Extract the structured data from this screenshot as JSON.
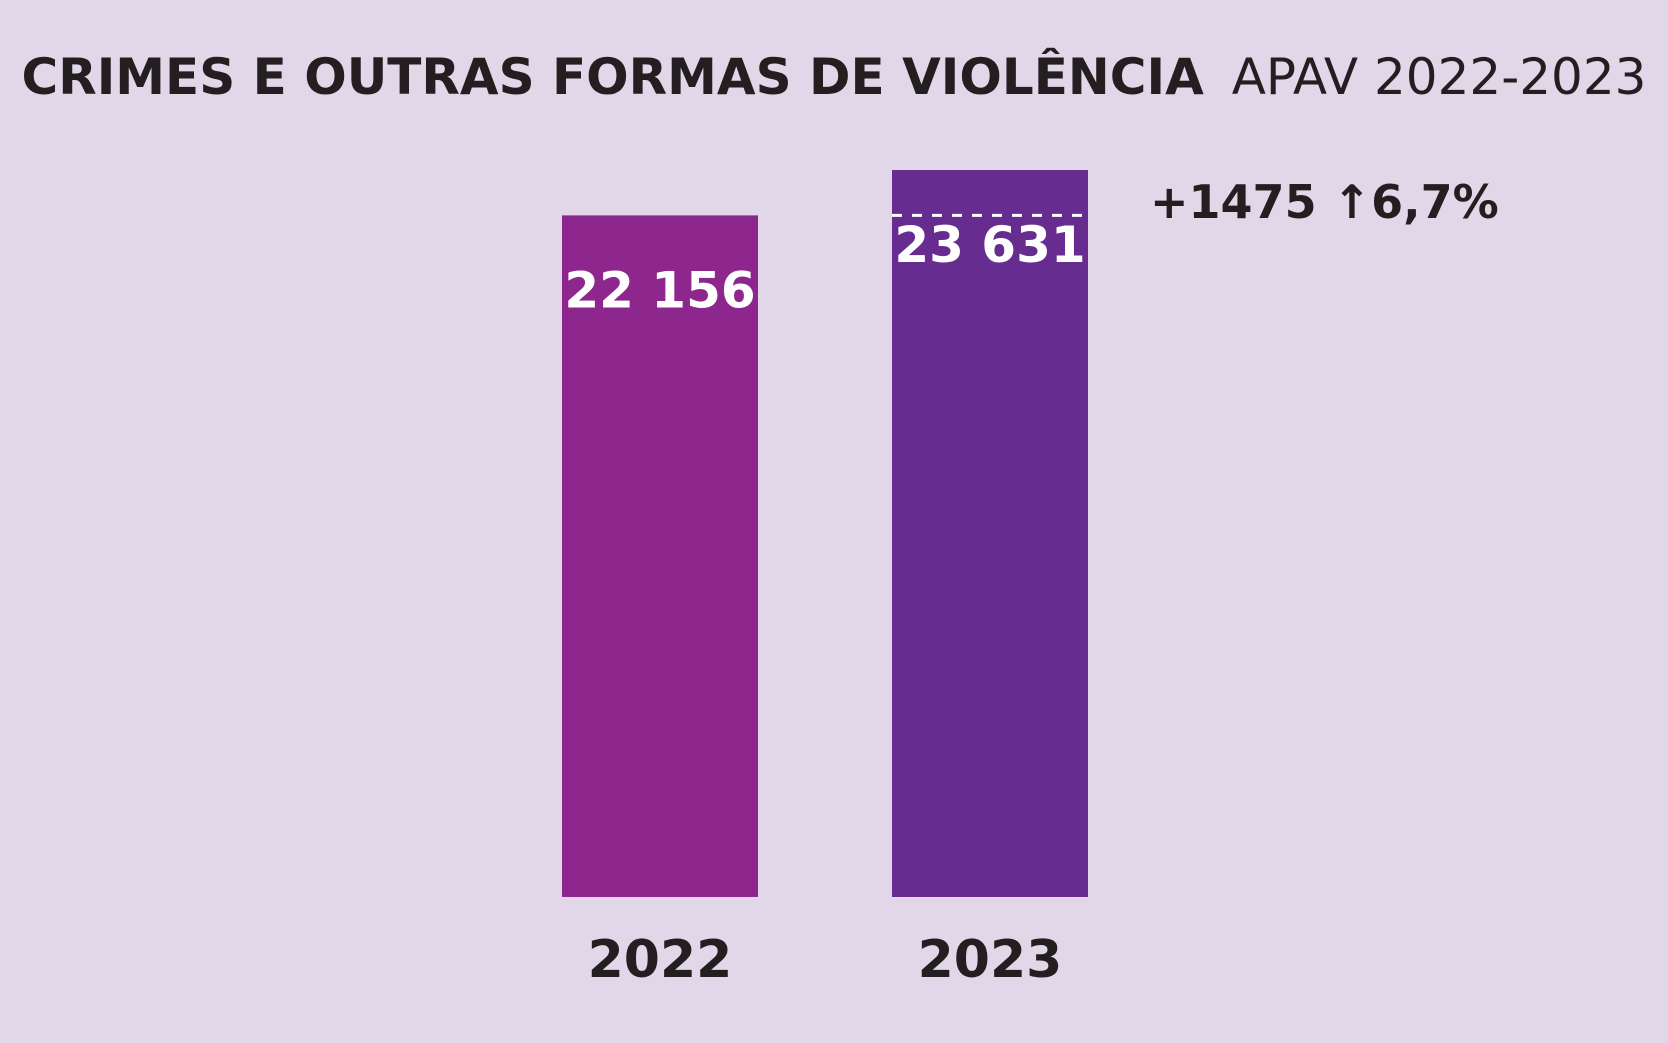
{
  "chart_data": {
    "type": "bar",
    "title": "CRIMES E OUTRAS FORMAS DE VIOLÊNCIA",
    "subtitle": "APAV 2022-2023",
    "categories": [
      "2022",
      "2023"
    ],
    "values": [
      22156,
      23631
    ],
    "value_labels": [
      "22 156",
      "23 631"
    ],
    "bar_colors": [
      "#8e278d",
      "#672c8f"
    ],
    "ylim": [
      0,
      23631
    ],
    "grid": false,
    "legend": "none",
    "annotation": {
      "text": "+1475 ↑6,7%",
      "difference": 1475,
      "percent_change": 6.7
    }
  },
  "colors": {
    "background": "#e2d6e9",
    "text_dark": "#231f20",
    "text_light": "#ffffff"
  }
}
